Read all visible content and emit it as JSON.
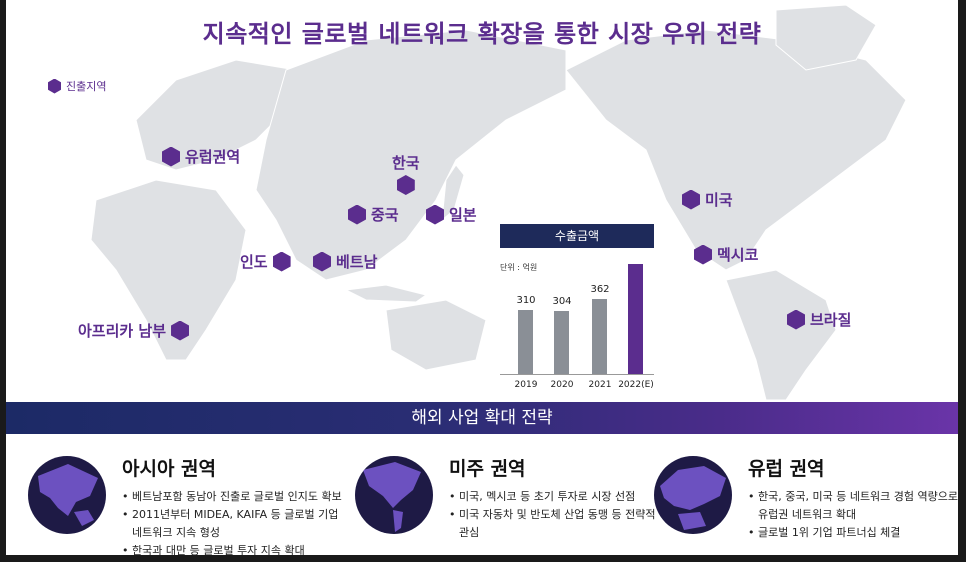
{
  "title": "지속적인 글로벌 네트워크 확장을 통한 시장 우위 전략",
  "legend": {
    "label": "진출지역"
  },
  "regions": {
    "europe": "유럽권역",
    "korea": "한국",
    "china": "중국",
    "japan": "일본",
    "india": "인도",
    "vietnam": "베트남",
    "south_africa": "아프리카 남부",
    "usa": "미국",
    "mexico": "멕시코",
    "brazil": "브라질"
  },
  "chart_data": {
    "type": "bar",
    "title": "수출금액",
    "unit_label": "단위 : 억원",
    "categories": [
      "2019",
      "2020",
      "2021",
      "2022(E)"
    ],
    "values": [
      310,
      304,
      362,
      530
    ],
    "value_labels": [
      "310",
      "304",
      "362",
      ""
    ],
    "colors": [
      "#8a8f96",
      "#8a8f96",
      "#8a8f96",
      "#5b2d8e"
    ],
    "ylim": [
      0,
      560
    ]
  },
  "banner": {
    "label": "해외 사업 확대 전략"
  },
  "cards": [
    {
      "title": "아시아 권역",
      "bullets": [
        "베트남포함 동남아 진출로 글로벌 인지도 확보",
        "2011년부터 MIDEA, KAIFA 등 글로벌 기업 네트워크 지속 형성",
        "한국과 대만 등 글로벌 투자 지속 확대"
      ]
    },
    {
      "title": "미주 권역",
      "bullets": [
        "미국, 멕시코 등 초기 투자로 시장 선점",
        "미국 자동차 및 반도체 산업 동맹 등 전략적 관심"
      ]
    },
    {
      "title": "유럽 권역",
      "bullets": [
        "한국, 중국, 미국 등 네트워크 경험 역량으로 유럽권 네트워크 확대",
        "글로벌 1위 기업 파트너십 체결"
      ]
    }
  ]
}
